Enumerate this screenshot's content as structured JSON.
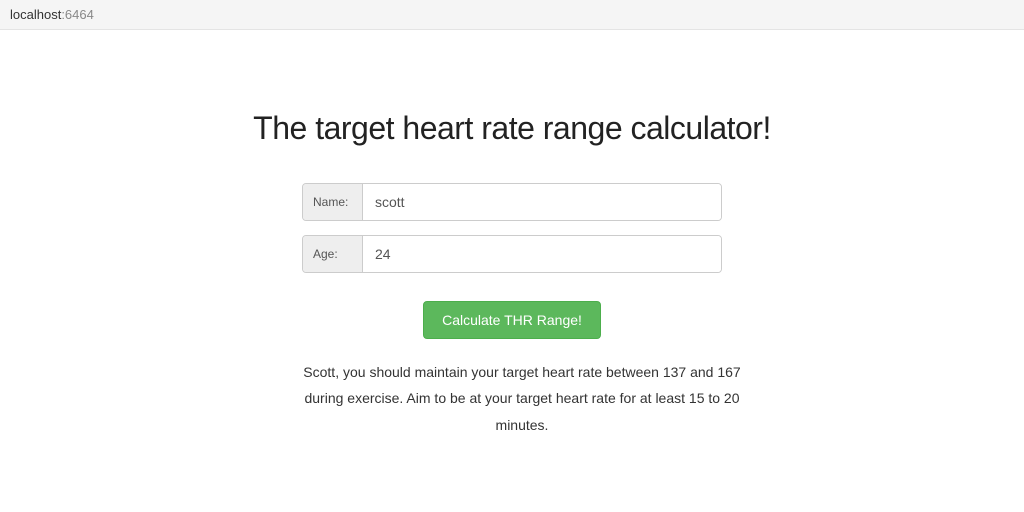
{
  "address": {
    "host": "localhost",
    "port": ":6464"
  },
  "heading": "The target heart rate range calculator!",
  "form": {
    "name": {
      "label": "Name:",
      "value": "scott",
      "placeholder": ""
    },
    "age": {
      "label": "Age:",
      "value": "24",
      "placeholder": ""
    },
    "submit_label": "Calculate THR Range!"
  },
  "result_text": "Scott, you should maintain your target heart rate between 137 and 167 during exercise. Aim to be at your target heart rate for at least 15 to 20 minutes.",
  "colors": {
    "button_bg": "#5cb85c",
    "button_border": "#4cae4c",
    "input_border": "#cccccc",
    "label_bg": "#eeeeee",
    "addr_bg": "#f5f5f5"
  }
}
